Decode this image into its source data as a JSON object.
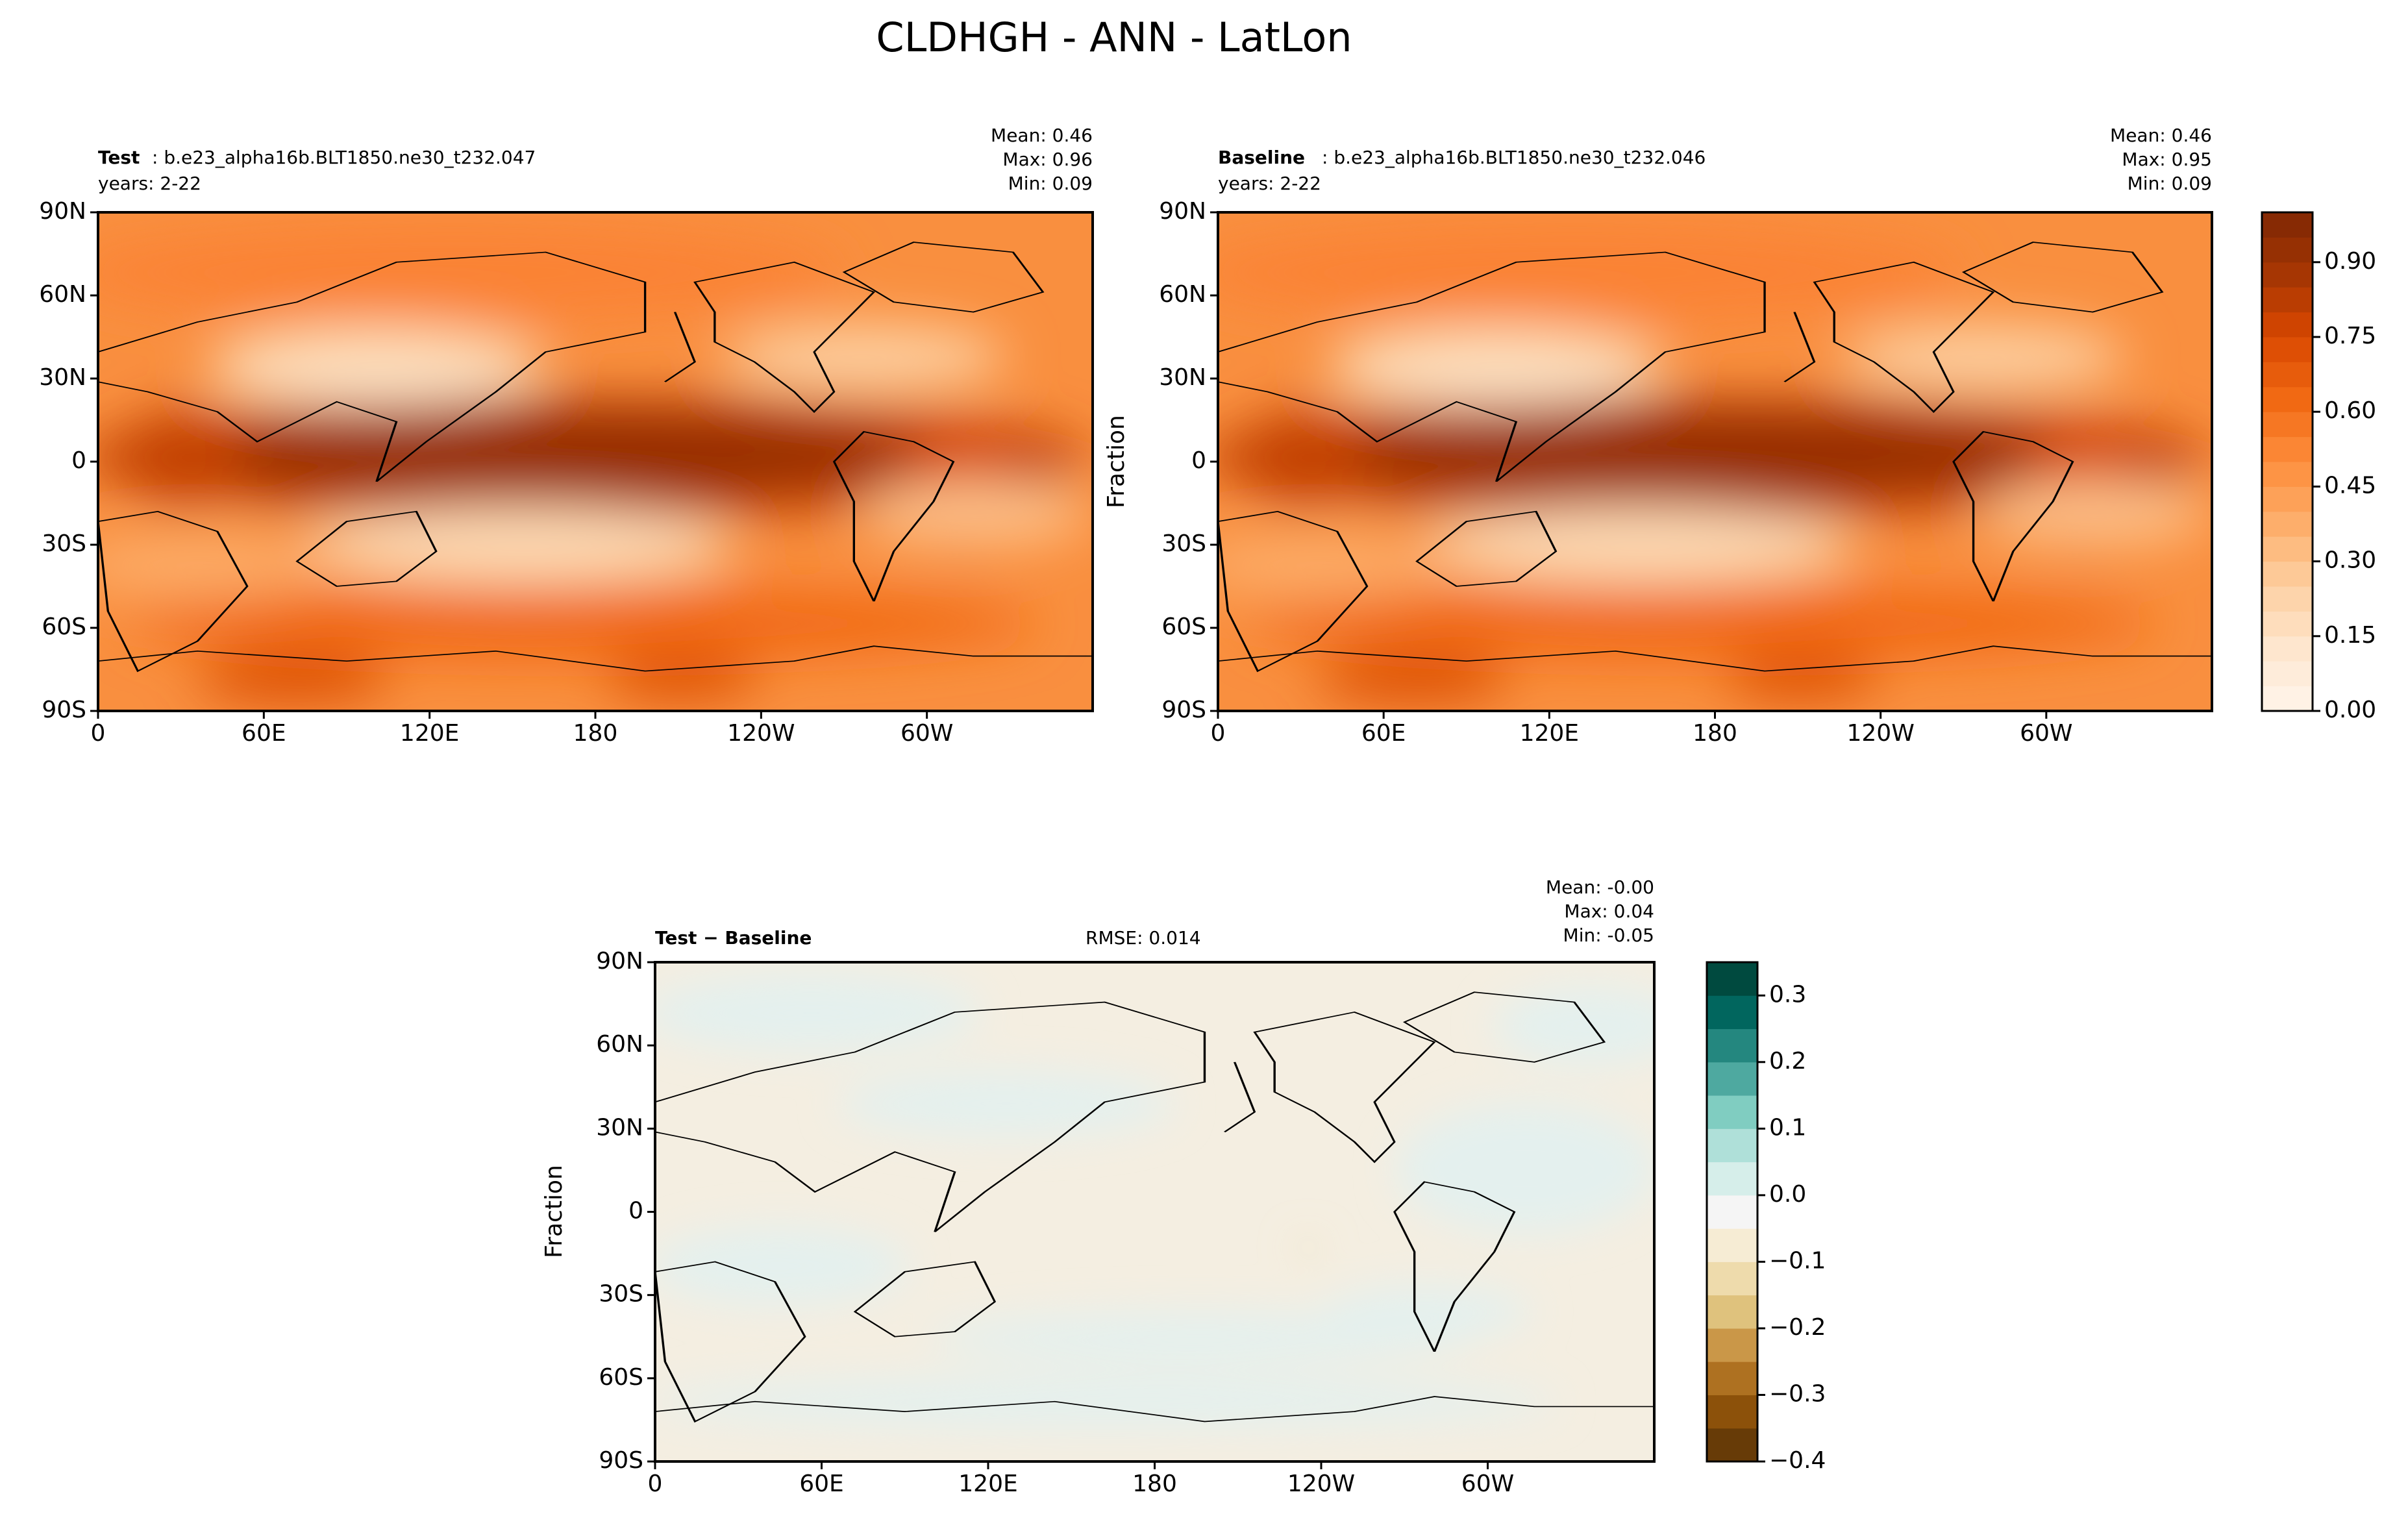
{
  "title": "CLDHGH - ANN - LatLon",
  "colors": {
    "land_outline": "#000000",
    "seq_ramp": [
      "#fff5eb",
      "#fee6ce",
      "#fdd0a2",
      "#fdae6b",
      "#fd8d3c",
      "#f16913",
      "#d94801",
      "#a63603",
      "#7f2704"
    ],
    "div_ramp": [
      "#543005",
      "#8c510a",
      "#bf812d",
      "#dfc27d",
      "#f6e8c3",
      "#f5f5f5",
      "#c7eae5",
      "#80cdc1",
      "#35978f",
      "#01665e",
      "#003c30"
    ]
  },
  "panels": {
    "test": {
      "label_bold": "Test",
      "label_rest": ": b.e23_alpha16b.BLT1850.ne30_t232.047",
      "years": "years: 2-22",
      "stats": [
        "Mean:  0.46",
        "Max:  0.96",
        "Min:  0.09"
      ]
    },
    "baseline": {
      "label_bold": "Baseline",
      "label_rest": ": b.e23_alpha16b.BLT1850.ne30_t232.046",
      "years": "years: 2-22",
      "stats": [
        "Mean:  0.46",
        "Max:  0.95",
        "Min:  0.09"
      ]
    },
    "diff": {
      "label_bold": "Test − Baseline",
      "rmse": "RMSE: 0.014",
      "stats": [
        "Mean: -0.00",
        "Max:  0.04",
        "Min: -0.05"
      ]
    }
  },
  "axes": {
    "lat_ticks": [
      "90N",
      "60N",
      "30N",
      "0",
      "30S",
      "60S",
      "90S"
    ],
    "lon_ticks": [
      "0",
      "60E",
      "120E",
      "180",
      "120W",
      "60W"
    ],
    "ylabel": "Fraction"
  },
  "chart_data": [
    {
      "type": "heatmap",
      "name": "Test",
      "variable": "CLDHGH",
      "units": "Fraction",
      "x_range": [
        0,
        360
      ],
      "y_range": [
        -90,
        90
      ],
      "colormap": "Oranges",
      "levels_range": [
        0.0,
        1.0
      ],
      "mean": 0.46,
      "max": 0.96,
      "min": 0.09
    },
    {
      "type": "heatmap",
      "name": "Baseline",
      "variable": "CLDHGH",
      "units": "Fraction",
      "x_range": [
        0,
        360
      ],
      "y_range": [
        -90,
        90
      ],
      "colormap": "Oranges",
      "levels_range": [
        0.0,
        1.0
      ],
      "mean": 0.46,
      "max": 0.95,
      "min": 0.09
    },
    {
      "type": "heatmap",
      "name": "Test - Baseline",
      "variable": "CLDHGH",
      "units": "Fraction",
      "x_range": [
        0,
        360
      ],
      "y_range": [
        -90,
        90
      ],
      "colormap": "BrBG",
      "levels_range": [
        -0.4,
        0.35
      ],
      "mean": -0.0,
      "max": 0.04,
      "min": -0.05,
      "rmse": 0.014
    }
  ],
  "colorbars": {
    "main": {
      "ticks": [
        "0.00",
        "0.15",
        "0.30",
        "0.45",
        "0.60",
        "0.75",
        "0.90"
      ],
      "values": [
        0.0,
        0.15,
        0.3,
        0.45,
        0.6,
        0.75,
        0.9
      ],
      "vmin": 0.0,
      "vmax": 1.0,
      "nlevels": 20
    },
    "diff": {
      "ticks": [
        "−0.4",
        "−0.3",
        "−0.2",
        "−0.1",
        "0.0",
        "0.1",
        "0.2",
        "0.3"
      ],
      "values": [
        -0.4,
        -0.3,
        -0.2,
        -0.1,
        0.0,
        0.1,
        0.2,
        0.3
      ],
      "vmin": -0.4,
      "vmax": 0.35,
      "nlevels": 15
    }
  }
}
